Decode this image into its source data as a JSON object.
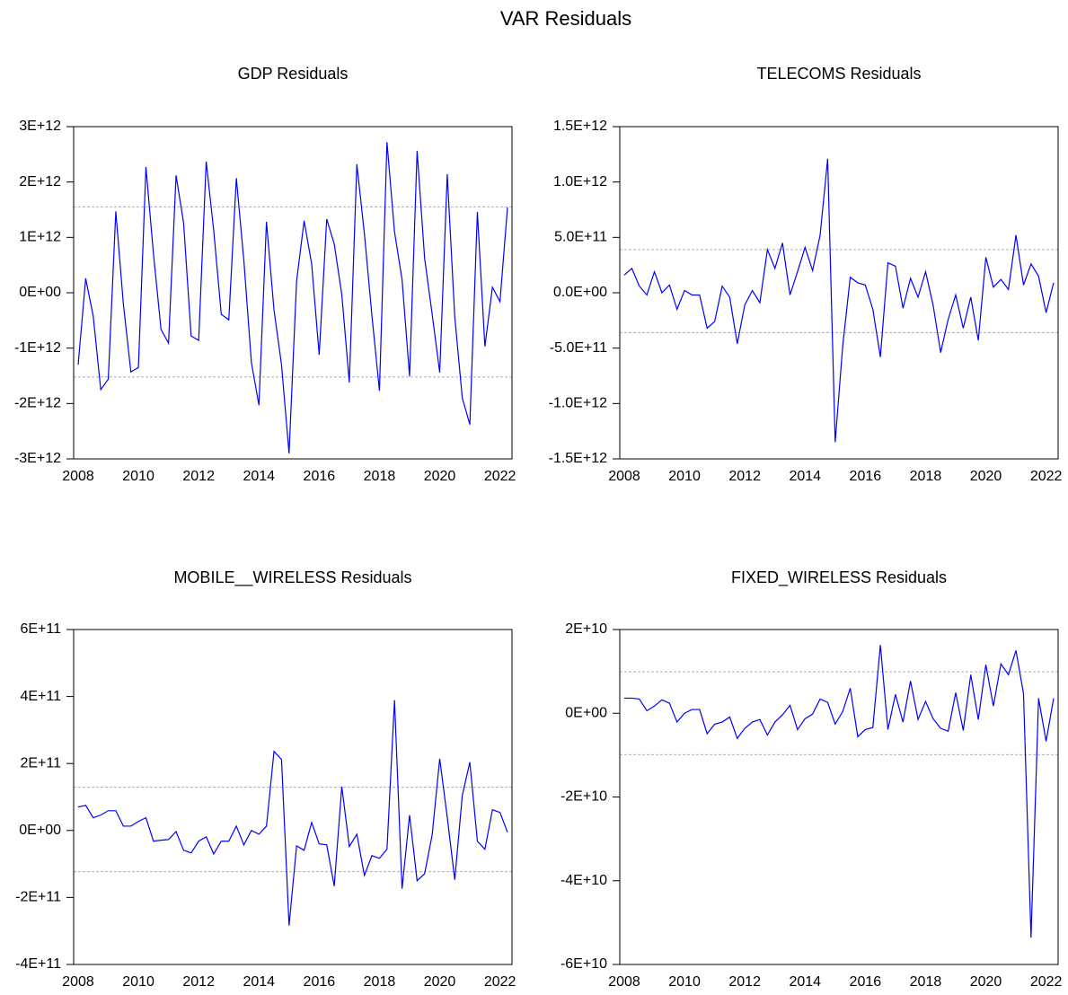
{
  "title": "VAR Residuals",
  "chart_data": [
    {
      "type": "line",
      "title": "GDP Residuals",
      "color": "#0000ff",
      "categories": [
        "2008",
        null,
        null,
        null,
        null,
        null,
        null,
        null,
        "2010",
        null,
        null,
        null,
        null,
        null,
        null,
        null,
        "2012",
        null,
        null,
        null,
        null,
        null,
        null,
        null,
        "2014",
        null,
        null,
        null,
        null,
        null,
        null,
        null,
        "2016",
        null,
        null,
        null,
        null,
        null,
        null,
        null,
        "2018",
        null,
        null,
        null,
        null,
        null,
        null,
        null,
        "2020",
        null,
        null,
        null,
        null,
        null,
        null,
        null,
        "2022",
        null
      ],
      "values": [
        -1300000000000.0,
        260000000000.0,
        -420000000000.0,
        -1750000000000.0,
        -1560000000000.0,
        1470000000000.0,
        -200000000000.0,
        -1430000000000.0,
        -1350000000000.0,
        2270000000000.0,
        700000000000.0,
        -660000000000.0,
        -910000000000.0,
        2120000000000.0,
        1260000000000.0,
        -780000000000.0,
        -860000000000.0,
        2370000000000.0,
        1120000000000.0,
        -390000000000.0,
        -490000000000.0,
        2070000000000.0,
        580000000000.0,
        -1260000000000.0,
        -2030000000000.0,
        1280000000000.0,
        -310000000000.0,
        -1300000000000.0,
        -2900000000000.0,
        210000000000.0,
        1300000000000.0,
        520000000000.0,
        -1120000000000.0,
        1330000000000.0,
        880000000000.0,
        -30000000000.0,
        -1620000000000.0,
        2320000000000.0,
        1070000000000.0,
        -410000000000.0,
        -1770000000000.0,
        2720000000000.0,
        1100000000000.0,
        240000000000.0,
        -1510000000000.0,
        2560000000000.0,
        620000000000.0,
        -390000000000.0,
        -1440000000000.0,
        2140000000000.0,
        -440000000000.0,
        -1900000000000.0,
        -2380000000000.0,
        1460000000000.0,
        -970000000000.0,
        100000000000.0,
        -160000000000.0,
        1540000000000.0
      ],
      "ylim": [
        -3000000000000.0,
        3000000000000.0
      ],
      "yticks": [
        {
          "value": -3000000000000.0,
          "label": "-3E+12"
        },
        {
          "value": -2000000000000.0,
          "label": "-2E+12"
        },
        {
          "value": -1000000000000.0,
          "label": "-1E+12"
        },
        {
          "value": 0,
          "label": "0E+00"
        },
        {
          "value": 1000000000000.0,
          "label": "1E+12"
        },
        {
          "value": 2000000000000.0,
          "label": "2E+12"
        },
        {
          "value": 3000000000000.0,
          "label": "3E+12"
        }
      ],
      "reference_lines": [
        1550000000000.0,
        -1520000000000.0
      ]
    },
    {
      "type": "line",
      "title": "TELECOMS Residuals",
      "color": "#0000ff",
      "categories": [
        "2008",
        null,
        null,
        null,
        null,
        null,
        null,
        null,
        "2010",
        null,
        null,
        null,
        null,
        null,
        null,
        null,
        "2012",
        null,
        null,
        null,
        null,
        null,
        null,
        null,
        "2014",
        null,
        null,
        null,
        null,
        null,
        null,
        null,
        "2016",
        null,
        null,
        null,
        null,
        null,
        null,
        null,
        "2018",
        null,
        null,
        null,
        null,
        null,
        null,
        null,
        "2020",
        null,
        null,
        null,
        null,
        null,
        null,
        null,
        "2022",
        null
      ],
      "values": [
        160000000000.0,
        220000000000.0,
        60000000000.0,
        -20000000000.0,
        190000000000.0,
        0,
        70000000000.0,
        -150000000000.0,
        20000000000.0,
        -20000000000.0,
        -20000000000.0,
        -320000000000.0,
        -260000000000.0,
        60000000000.0,
        -40000000000.0,
        -460000000000.0,
        -110000000000.0,
        20000000000.0,
        -90000000000.0,
        390000000000.0,
        220000000000.0,
        450000000000.0,
        -20000000000.0,
        190000000000.0,
        410000000000.0,
        200000000000.0,
        520000000000.0,
        1210000000000.0,
        -1350000000000.0,
        -480000000000.0,
        140000000000.0,
        90000000000.0,
        70000000000.0,
        -150000000000.0,
        -580000000000.0,
        270000000000.0,
        240000000000.0,
        -140000000000.0,
        130000000000.0,
        -40000000000.0,
        190000000000.0,
        -110000000000.0,
        -540000000000.0,
        -240000000000.0,
        -20000000000.0,
        -320000000000.0,
        -40000000000.0,
        -430000000000.0,
        320000000000.0,
        50000000000.0,
        120000000000.0,
        30000000000.0,
        520000000000.0,
        70000000000.0,
        260000000000.0,
        150000000000.0,
        -180000000000.0,
        90000000000.0
      ],
      "ylim": [
        -1500000000000.0,
        1500000000000.0
      ],
      "yticks": [
        {
          "value": -1500000000000.0,
          "label": "-1.5E+12"
        },
        {
          "value": -1000000000000.0,
          "label": "-1.0E+12"
        },
        {
          "value": -500000000000.0,
          "label": "-5.0E+11"
        },
        {
          "value": 0,
          "label": "0.0E+00"
        },
        {
          "value": 500000000000.0,
          "label": "5.0E+11"
        },
        {
          "value": 1000000000000.0,
          "label": "1.0E+12"
        },
        {
          "value": 1500000000000.0,
          "label": "1.5E+12"
        }
      ],
      "reference_lines": [
        390000000000.0,
        -360000000000.0
      ]
    },
    {
      "type": "line",
      "title": "MOBILE__WIRELESS Residuals",
      "color": "#0000ff",
      "categories": [
        "2008",
        null,
        null,
        null,
        null,
        null,
        null,
        null,
        "2010",
        null,
        null,
        null,
        null,
        null,
        null,
        null,
        "2012",
        null,
        null,
        null,
        null,
        null,
        null,
        null,
        "2014",
        null,
        null,
        null,
        null,
        null,
        null,
        null,
        "2016",
        null,
        null,
        null,
        null,
        null,
        null,
        null,
        "2018",
        null,
        null,
        null,
        null,
        null,
        null,
        null,
        "2020",
        null,
        null,
        null,
        null,
        null,
        null,
        null,
        "2022",
        null
      ],
      "values": [
        70000000000.0,
        75000000000.0,
        38000000000.0,
        46000000000.0,
        59000000000.0,
        59000000000.0,
        13000000000.0,
        13000000000.0,
        27000000000.0,
        38000000000.0,
        -32000000000.0,
        -29000000000.0,
        -27000000000.0,
        -3000000000.0,
        -59000000000.0,
        -67000000000.0,
        -32000000000.0,
        -19000000000.0,
        -70000000000.0,
        -32000000000.0,
        -32000000000.0,
        13000000000.0,
        -43000000000.0,
        0,
        -11000000000.0,
        13000000000.0,
        236000000000.0,
        212000000000.0,
        -284000000000.0,
        -46000000000.0,
        -59000000000.0,
        24000000000.0,
        -40000000000.0,
        -43000000000.0,
        -166000000000.0,
        131000000000.0,
        -48000000000.0,
        -11000000000.0,
        -134000000000.0,
        -75000000000.0,
        -83000000000.0,
        -56000000000.0,
        389000000000.0,
        -174000000000.0,
        46000000000.0,
        -150000000000.0,
        -129000000000.0,
        -13000000000.0,
        214000000000.0,
        40000000000.0,
        -147000000000.0,
        105000000000.0,
        204000000000.0,
        -32000000000.0,
        -56000000000.0,
        62000000000.0,
        54000000000.0,
        -5000000000.0
      ],
      "ylim": [
        -400000000000.0,
        600000000000.0
      ],
      "yticks": [
        {
          "value": -400000000000.0,
          "label": "-4E+11"
        },
        {
          "value": -200000000000.0,
          "label": "-2E+11"
        },
        {
          "value": 0,
          "label": "0E+00"
        },
        {
          "value": 200000000000.0,
          "label": "2E+11"
        },
        {
          "value": 400000000000.0,
          "label": "4E+11"
        },
        {
          "value": 600000000000.0,
          "label": "6E+11"
        }
      ],
      "reference_lines": [
        129000000000.0,
        -123000000000.0
      ]
    },
    {
      "type": "line",
      "title": "FIXED_WIRELESS Residuals",
      "color": "#0000ff",
      "categories": [
        "2008",
        null,
        null,
        null,
        null,
        null,
        null,
        null,
        "2010",
        null,
        null,
        null,
        null,
        null,
        null,
        null,
        "2012",
        null,
        null,
        null,
        null,
        null,
        null,
        null,
        "2014",
        null,
        null,
        null,
        null,
        null,
        null,
        null,
        "2016",
        null,
        null,
        null,
        null,
        null,
        null,
        null,
        "2018",
        null,
        null,
        null,
        null,
        null,
        null,
        null,
        "2020",
        null,
        null,
        null,
        null,
        null,
        null,
        null,
        "2022",
        null
      ],
      "values": [
        3600000000.0,
        3600000000.0,
        3400000000.0,
        600000000.0,
        1700000000.0,
        3200000000.0,
        2400000000.0,
        -2100000000.0,
        0,
        900000000.0,
        900000000.0,
        -4900000000.0,
        -2600000000.0,
        -2100000000.0,
        -900000000.0,
        -6000000000.0,
        -3600000000.0,
        -2100000000.0,
        -1500000000.0,
        -5200000000.0,
        -2100000000.0,
        -400000000.0,
        1900000000.0,
        -3900000000.0,
        -1300000000.0,
        -200000000.0,
        3400000000.0,
        2600000000.0,
        -2600000000.0,
        400000000.0,
        6000000000.0,
        -5600000000.0,
        -3900000000.0,
        -3400000000.0,
        16300000000.0,
        -3900000000.0,
        4500000000.0,
        -2100000000.0,
        7700000000.0,
        -1500000000.0,
        2800000000.0,
        -1300000000.0,
        -3600000000.0,
        -4300000000.0,
        4900000000.0,
        -4100000000.0,
        9200000000.0,
        -1500000000.0,
        11600000000.0,
        1700000000.0,
        11800000000.0,
        9200000000.0,
        15000000000.0,
        4700000000.0,
        -53600000000.0,
        3600000000.0,
        -6700000000.0,
        3600000000.0
      ],
      "ylim": [
        -60000000000.0,
        20000000000.0
      ],
      "yticks": [
        {
          "value": -60000000000.0,
          "label": "-6E+10"
        },
        {
          "value": -40000000000.0,
          "label": "-4E+10"
        },
        {
          "value": -20000000000.0,
          "label": "-2E+10"
        },
        {
          "value": 0,
          "label": "0E+00"
        },
        {
          "value": 20000000000.0,
          "label": "2E+10"
        }
      ],
      "reference_lines": [
        9900000000.0,
        -9900000000.0
      ]
    }
  ]
}
